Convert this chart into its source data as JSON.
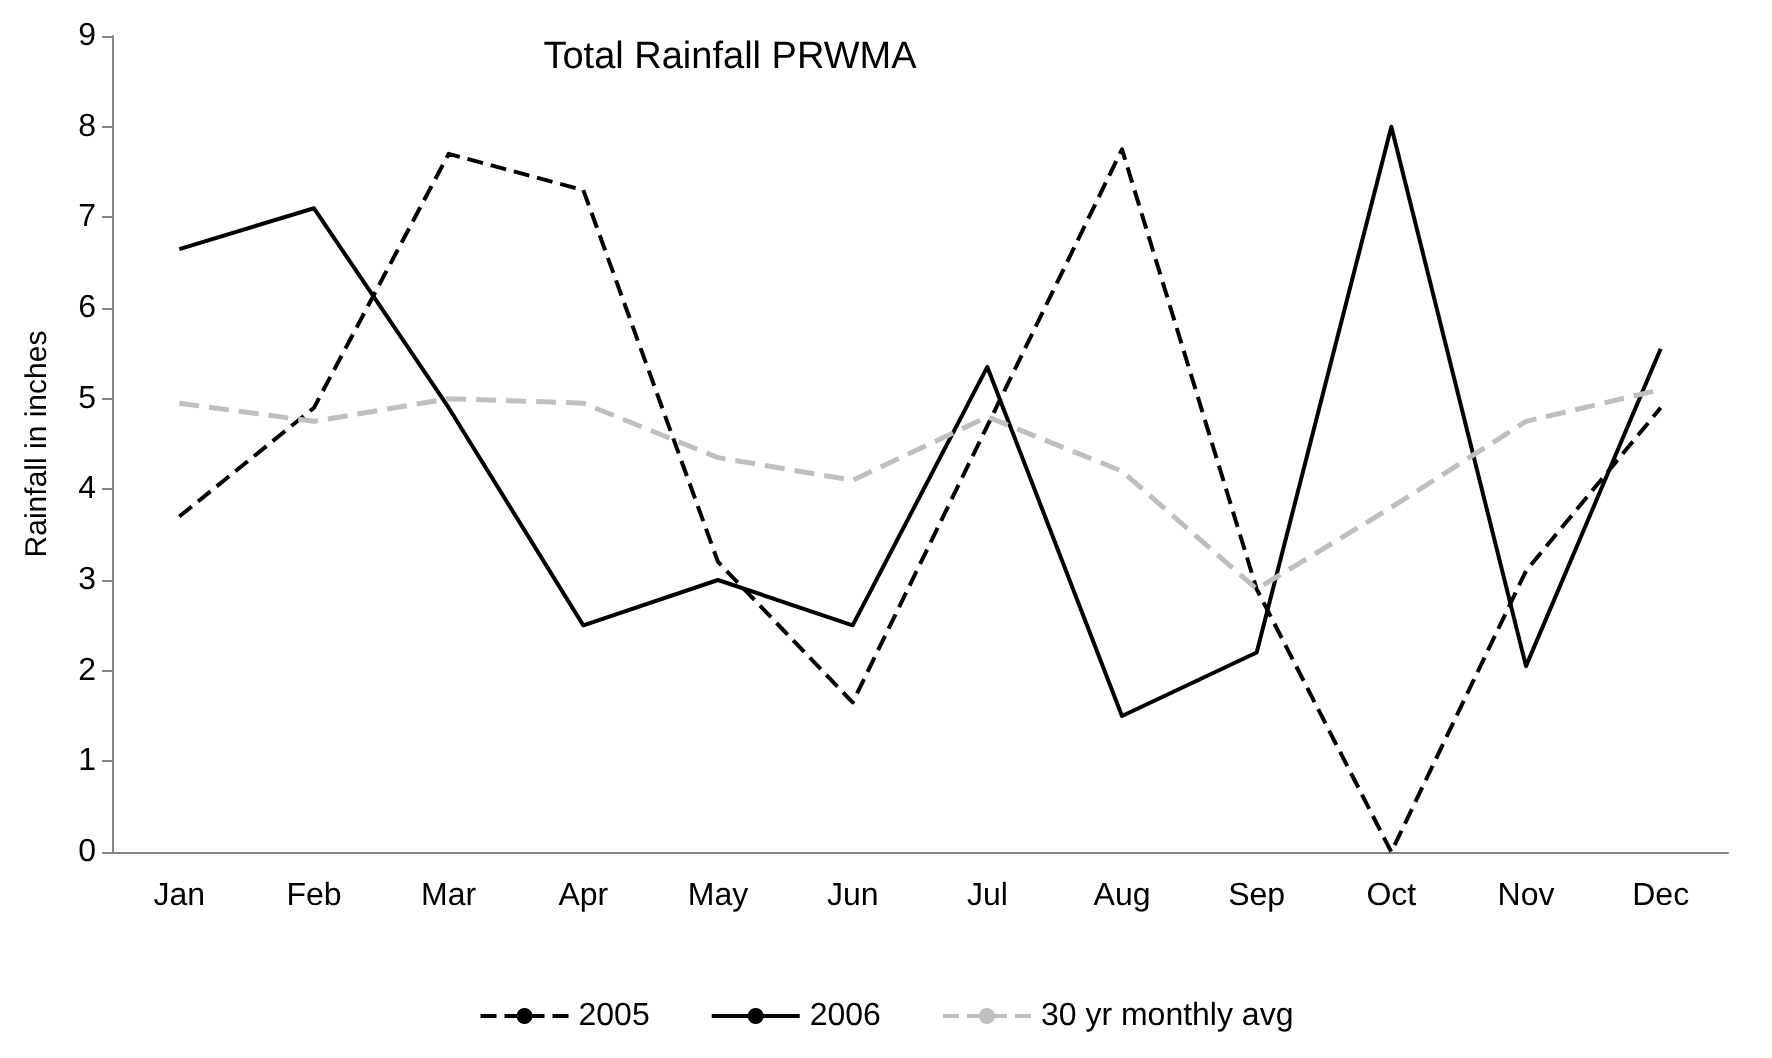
{
  "chart_data": {
    "type": "line",
    "title": "Total Rainfall PRWMA",
    "ylabel": "Rainfall in inches",
    "categories": [
      "Jan",
      "Feb",
      "Mar",
      "Apr",
      "May",
      "Jun",
      "Jul",
      "Aug",
      "Sep",
      "Oct",
      "Nov",
      "Dec"
    ],
    "series": [
      {
        "name": "2005",
        "color": "#000000",
        "line_style": "dashed",
        "values": [
          3.7,
          4.9,
          7.7,
          7.3,
          3.2,
          1.65,
          4.7,
          7.75,
          2.9,
          0,
          3.1,
          4.9
        ]
      },
      {
        "name": "2006",
        "color": "#000000",
        "line_style": "solid",
        "values": [
          6.65,
          7.1,
          4.9,
          2.5,
          3.0,
          2.5,
          5.35,
          1.5,
          2.2,
          8.0,
          2.05,
          5.55
        ]
      },
      {
        "name": "30 yr monthly avg",
        "color": "#bfbfbf",
        "line_style": "dashed",
        "values": [
          4.95,
          4.75,
          5.0,
          4.95,
          4.35,
          4.1,
          4.8,
          4.2,
          2.9,
          3.8,
          4.75,
          5.1
        ]
      }
    ],
    "ylim": [
      0,
      9
    ],
    "yticks": [
      0,
      1,
      2,
      3,
      4,
      5,
      6,
      7,
      8,
      9
    ],
    "grid": false,
    "legend": "bottom",
    "marker": "none"
  }
}
